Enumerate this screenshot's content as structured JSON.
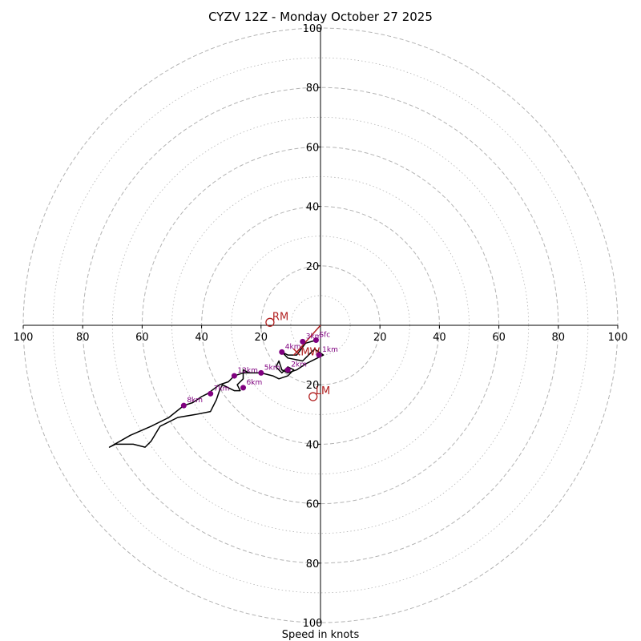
{
  "chart_data": {
    "type": "hodograph",
    "title": "CYZV 12Z - Monday October 27 2025",
    "xlabel": "Speed in knots",
    "axis_range": [
      -100,
      100
    ],
    "rings_major": [
      20,
      40,
      60,
      80,
      100
    ],
    "rings_minor": [
      10,
      30,
      50,
      70,
      90
    ],
    "tick_values": [
      20,
      40,
      60,
      80,
      100
    ],
    "tick_labels": [
      "20",
      "40",
      "60",
      "80",
      "100"
    ],
    "colors": {
      "trace": "#000000",
      "height_marker": "#800080",
      "motion": "#b22222",
      "ring": "#b3b3b3",
      "axis": "#000000"
    },
    "trace": [
      [
        -1.5,
        -5
      ],
      [
        -5,
        -6
      ],
      [
        -8,
        -10
      ],
      [
        -11,
        -10
      ],
      [
        -13,
        -9
      ],
      [
        -11,
        -11
      ],
      [
        -6,
        -12
      ],
      [
        -2,
        -8
      ],
      [
        1,
        -10
      ],
      [
        -5,
        -13
      ],
      [
        -8,
        -15
      ],
      [
        -11,
        -16
      ],
      [
        -13,
        -15
      ],
      [
        -14,
        -12
      ],
      [
        -15,
        -14
      ],
      [
        -13,
        -16
      ],
      [
        -11,
        -14
      ],
      [
        -9,
        -15
      ],
      [
        -11,
        -17
      ],
      [
        -14,
        -18
      ],
      [
        -16,
        -17
      ],
      [
        -20,
        -16
      ],
      [
        -24,
        -16
      ],
      [
        -26,
        -15
      ],
      [
        -26,
        -18
      ],
      [
        -27,
        -19
      ],
      [
        -28,
        -20
      ],
      [
        -27,
        -22
      ],
      [
        -29,
        -22
      ],
      [
        -31,
        -21
      ],
      [
        -33,
        -20
      ],
      [
        -34,
        -22
      ],
      [
        -35,
        -25
      ],
      [
        -37,
        -29
      ],
      [
        -42,
        -30
      ],
      [
        -48,
        -31
      ],
      [
        -54,
        -34
      ],
      [
        -57,
        -39
      ],
      [
        -59,
        -41
      ],
      [
        -63,
        -40
      ],
      [
        -67,
        -40
      ],
      [
        -69,
        -40
      ],
      [
        -71,
        -41
      ],
      [
        -64,
        -37
      ],
      [
        -57,
        -34
      ],
      [
        -51,
        -31
      ],
      [
        -46,
        -27
      ],
      [
        -43,
        -26
      ],
      [
        -40,
        -24
      ],
      [
        -38,
        -23
      ],
      [
        -34,
        -20
      ],
      [
        -31,
        -19
      ],
      [
        -29,
        -17
      ],
      [
        -26,
        -16
      ],
      [
        -24,
        -16
      ]
    ],
    "height_markers": [
      {
        "label": "Sfc",
        "u": -1.5,
        "v": -5
      },
      {
        "label": "1km",
        "u": -0.5,
        "v": -10
      },
      {
        "label": "2km",
        "u": -11,
        "v": -15
      },
      {
        "label": "3km",
        "u": -6,
        "v": -5.5
      },
      {
        "label": "4km",
        "u": -13,
        "v": -9
      },
      {
        "label": "5km",
        "u": -20,
        "v": -16
      },
      {
        "label": "6km",
        "u": -26,
        "v": -21
      },
      {
        "label": "7km",
        "u": -37,
        "v": -23
      },
      {
        "label": "8km",
        "u": -46,
        "v": -27
      },
      {
        "label": "12km",
        "u": -29,
        "v": -17
      }
    ],
    "storm_motion": [
      {
        "label": "RM",
        "u": -17,
        "v": 1
      },
      {
        "label": "LM",
        "u": -2.5,
        "v": -24
      },
      {
        "label": "MW",
        "u": -8,
        "v": -9
      }
    ]
  }
}
